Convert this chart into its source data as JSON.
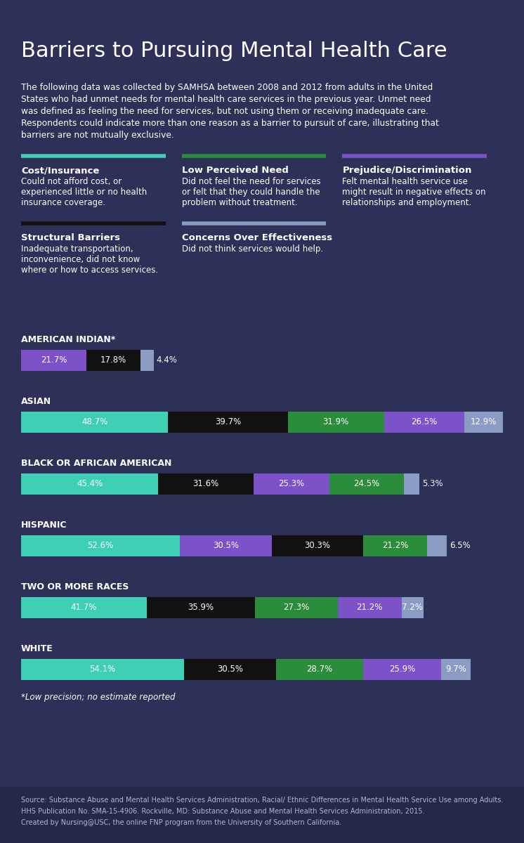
{
  "title": "Barriers to Pursuing Mental Health Care",
  "bg_color": "#2d3057",
  "footer_bg": "#252848",
  "text_color": "#ffffff",
  "subtitle_lines": [
    "The following data was collected by SAMHSA between 2008 and 2012 from adults in the United",
    "States who had unmet needs for mental health care services in the previous year. Unmet need",
    "was defined as feeling the need for services, but not using them or receiving inadequate care.",
    "Respondents could indicate more than one reason as a barrier to pursuit of care, illustrating that",
    "barriers are not mutually exclusive."
  ],
  "legend_top": [
    {
      "color": "#3ecfb5",
      "label": "Cost/Insurance",
      "desc": "Could not afford cost, or\nexperienced little or no health\ninsurance coverage."
    },
    {
      "color": "#2b8c3c",
      "label": "Low Perceived Need",
      "desc": "Did not feel the need for services\nor felt that they could handle the\nproblem without treatment."
    },
    {
      "color": "#7c52c8",
      "label": "Prejudice/Discrimination",
      "desc": "Felt mental health service use\nmight result in negative effects on\nrelationships and employment."
    }
  ],
  "legend_bot": [
    {
      "color": "#111111",
      "label": "Structural Barriers",
      "desc": "Inadequate transportation,\ninconvenience, did not know\nwhere or how to access services."
    },
    {
      "color": "#8a9bc4",
      "label": "Concerns Over Effectiveness",
      "desc": "Did not think services would help."
    }
  ],
  "groups": [
    {
      "name": "AMERICAN INDIAN*",
      "bars": [
        {
          "value": 21.7,
          "color": "#7c52c8"
        },
        {
          "value": 17.8,
          "color": "#111111"
        },
        {
          "value": 4.4,
          "color": "#8a9bc4"
        }
      ]
    },
    {
      "name": "ASIAN",
      "bars": [
        {
          "value": 48.7,
          "color": "#3ecfb5"
        },
        {
          "value": 39.7,
          "color": "#111111"
        },
        {
          "value": 31.9,
          "color": "#2b8c3c"
        },
        {
          "value": 26.5,
          "color": "#7c52c8"
        },
        {
          "value": 12.9,
          "color": "#8a9bc4"
        }
      ]
    },
    {
      "name": "BLACK OR AFRICAN AMERICAN",
      "bars": [
        {
          "value": 45.4,
          "color": "#3ecfb5"
        },
        {
          "value": 31.6,
          "color": "#111111"
        },
        {
          "value": 25.3,
          "color": "#7c52c8"
        },
        {
          "value": 24.5,
          "color": "#2b8c3c"
        },
        {
          "value": 5.3,
          "color": "#8a9bc4"
        }
      ]
    },
    {
      "name": "HISPANIC",
      "bars": [
        {
          "value": 52.6,
          "color": "#3ecfb5"
        },
        {
          "value": 30.5,
          "color": "#7c52c8"
        },
        {
          "value": 30.3,
          "color": "#111111"
        },
        {
          "value": 21.2,
          "color": "#2b8c3c"
        },
        {
          "value": 6.5,
          "color": "#8a9bc4"
        }
      ]
    },
    {
      "name": "TWO OR MORE RACES",
      "bars": [
        {
          "value": 41.7,
          "color": "#3ecfb5"
        },
        {
          "value": 35.9,
          "color": "#111111"
        },
        {
          "value": 27.3,
          "color": "#2b8c3c"
        },
        {
          "value": 21.2,
          "color": "#7c52c8"
        },
        {
          "value": 7.2,
          "color": "#8a9bc4"
        }
      ]
    },
    {
      "name": "WHITE",
      "bars": [
        {
          "value": 54.1,
          "color": "#3ecfb5"
        },
        {
          "value": 30.5,
          "color": "#111111"
        },
        {
          "value": 28.7,
          "color": "#2b8c3c"
        },
        {
          "value": 25.9,
          "color": "#7c52c8"
        },
        {
          "value": 9.7,
          "color": "#8a9bc4"
        }
      ]
    }
  ],
  "note": "*Low precision; no estimate reported",
  "source_line1": "Source: Substance Abuse and Mental Health Services Administration, Racial/ Ethnic Differences in Mental Health Service Use among Adults.",
  "source_line2": "HHS Publication No. SMA-15-4906. Rockville, MD: Substance Abuse and Mental Health Services Administration, 2015.",
  "source_line3": "Created by Nursing@USC, the online FNP program from the University of Southern California."
}
